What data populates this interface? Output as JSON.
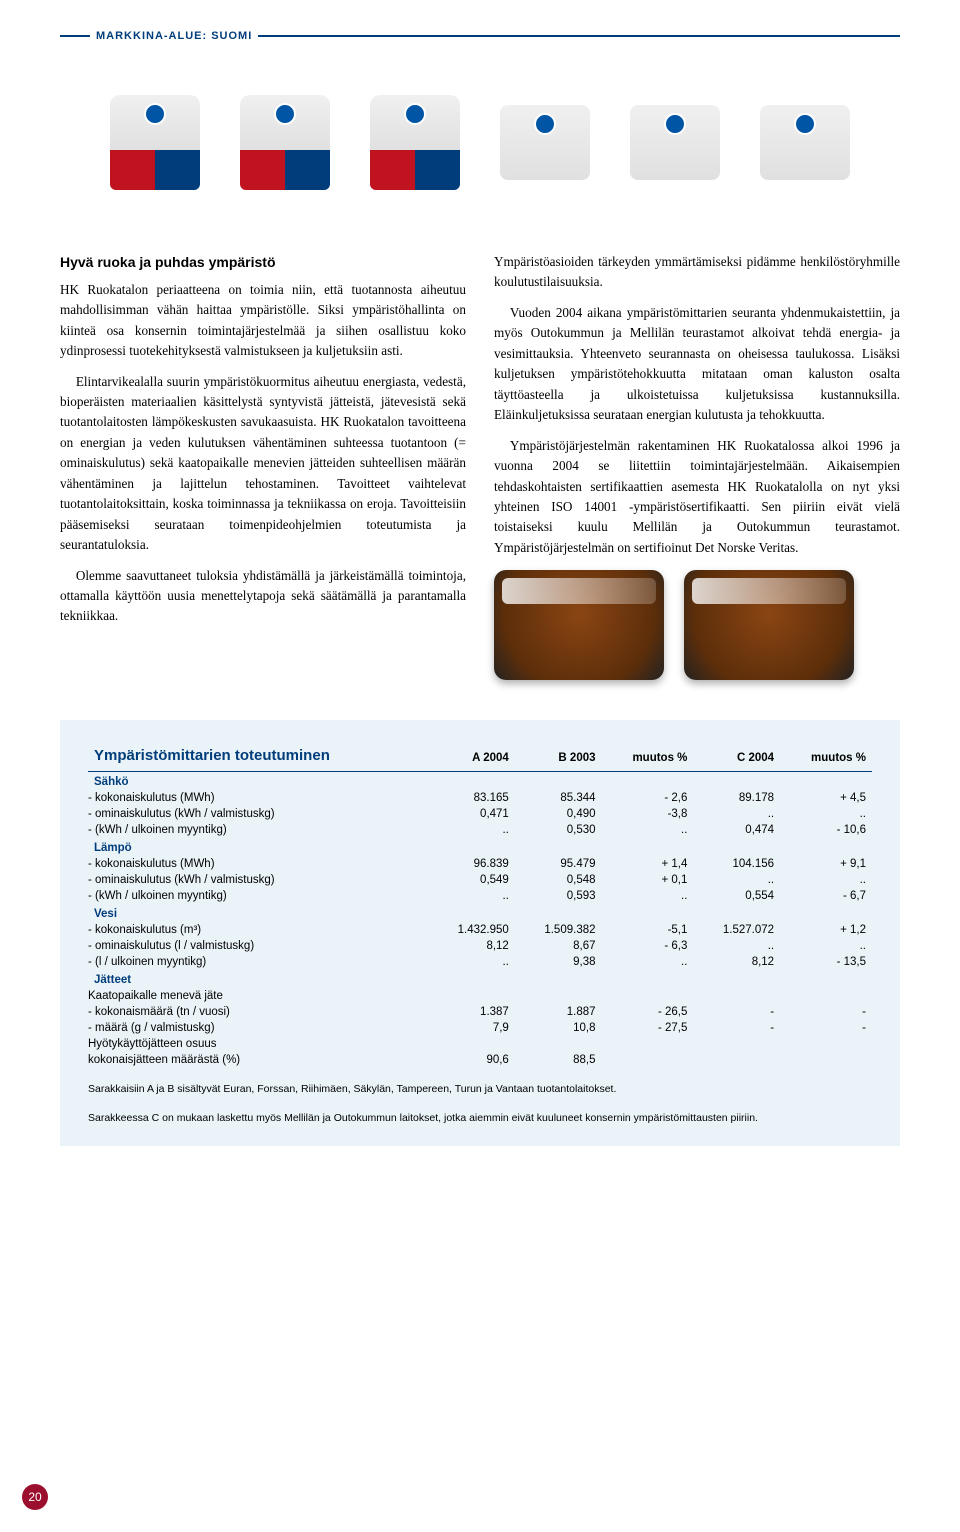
{
  "header": {
    "label": "MARKKINA-ALUE: SUOMI"
  },
  "article": {
    "heading": "Hyvä ruoka ja puhdas ympäristö",
    "left": [
      "HK Ruokatalon periaatteena on toimia niin, että tuotannosta aiheutuu mahdollisimman vähän haittaa ympäristölle. Siksi ympäristöhallinta on kiinteä osa konsernin toimintajärjestelmää ja siihen osallistuu koko ydinprosessi tuotekehityksestä valmistukseen ja kuljetuksiin asti.",
      "Elintarvikealalla suurin ympäristökuormitus aiheutuu energiasta, vedestä, bioperäisten materiaalien käsittelystä syntyvistä jätteistä, jätevesistä sekä tuotantolaitosten lämpökeskusten savukaasuista. HK Ruokatalon tavoitteena on energian ja veden kulutuksen vähentäminen suhteessa tuotantoon (= ominaiskulutus) sekä kaatopaikalle menevien jätteiden suhteellisen määrän vähentäminen ja lajittelun tehostaminen. Tavoitteet vaihtelevat tuotantolaitoksittain, koska toiminnassa ja tekniikassa on eroja. Tavoitteisiin pääsemiseksi seurataan toimenpideohjelmien toteutumista ja seurantatuloksia.",
      "Olemme saavuttaneet tuloksia yhdistämällä ja järkeistämällä toimintoja, ottamalla käyttöön uusia menettelytapoja sekä säätämällä ja parantamalla tekniikkaa."
    ],
    "right": [
      "Ympäristöasioiden tärkeyden ymmärtämiseksi pidämme henkilöstöryhmille koulutustilaisuuksia.",
      "Vuoden 2004 aikana ympäristömittarien seuranta yhdenmukaistettiin, ja myös Outokummun ja Mellilän teurastamot alkoivat tehdä energia- ja vesimittauksia. Yhteenveto seurannasta on oheisessa taulukossa. Lisäksi kuljetuksen ympäristötehokkuutta mitataan oman kaluston osalta täyttöasteella ja ulkoistetuissa kuljetuksissa kustannuksilla. Eläinkuljetuksissa seurataan energian kulutusta ja tehokkuutta.",
      "Ympäristöjärjestelmän rakentaminen HK Ruokatalossa alkoi 1996 ja vuonna 2004 se liitettiin toimintajärjestelmään. Aikaisempien tehdaskohtaisten sertifikaattien asemesta HK Ruokatalolla on nyt yksi yhteinen ISO 14001 -ympäristösertifikaatti. Sen piiriin eivät vielä toistaiseksi kuulu Mellilän ja Outokummun teurastamot. Ympäristöjärjestelmän on sertifioinut Det Norske Veritas."
    ]
  },
  "table": {
    "title": "Ympäristömittarien toteutuminen",
    "columns": [
      "A 2004",
      "B 2003",
      "muutos %",
      "C 2004",
      "muutos %"
    ],
    "sections": [
      {
        "name": "Sähkö",
        "rows": [
          {
            "label": "- kokonaiskulutus (MWh)",
            "v": [
              "83.165",
              "85.344",
              "- 2,6",
              "89.178",
              "+ 4,5"
            ]
          },
          {
            "label": "- ominaiskulutus (kWh / valmistuskg)",
            "v": [
              "0,471",
              "0,490",
              "-3,8",
              "..",
              ".."
            ]
          },
          {
            "label": "- (kWh / ulkoinen myyntikg)",
            "v": [
              "..",
              "0,530",
              "..",
              "0,474",
              "- 10,6"
            ]
          }
        ]
      },
      {
        "name": "Lämpö",
        "rows": [
          {
            "label": "- kokonaiskulutus (MWh)",
            "v": [
              "96.839",
              "95.479",
              "+ 1,4",
              "104.156",
              "+ 9,1"
            ]
          },
          {
            "label": "- ominaiskulutus (kWh / valmistuskg)",
            "v": [
              "0,549",
              "0,548",
              "+ 0,1",
              "..",
              ".."
            ]
          },
          {
            "label": "- (kWh / ulkoinen myyntikg)",
            "v": [
              "..",
              "0,593",
              "..",
              "0,554",
              "- 6,7"
            ]
          }
        ]
      },
      {
        "name": "Vesi",
        "rows": [
          {
            "label": "- kokonaiskulutus (m³)",
            "v": [
              "1.432.950",
              "1.509.382",
              "-5,1",
              "1.527.072",
              "+ 1,2"
            ]
          },
          {
            "label": "- ominaiskulutus (l / valmistuskg)",
            "v": [
              "8,12",
              "8,67",
              "- 6,3",
              "..",
              ".."
            ]
          },
          {
            "label": "- (l / ulkoinen myyntikg)",
            "v": [
              "..",
              "9,38",
              "..",
              "8,12",
              "- 13,5"
            ]
          }
        ]
      },
      {
        "name": "Jätteet",
        "rows": [
          {
            "label": "Kaatopaikalle menevä jäte",
            "v": [
              "",
              "",
              "",
              "",
              ""
            ]
          },
          {
            "label": "- kokonaismäärä (tn / vuosi)",
            "v": [
              "1.387",
              "1.887",
              "- 26,5",
              "-",
              "-"
            ]
          },
          {
            "label": "- määrä (g / valmistuskg)",
            "v": [
              "7,9",
              "10,8",
              "- 27,5",
              "-",
              "-"
            ]
          },
          {
            "label": "Hyötykäyttöjätteen osuus",
            "v": [
              "",
              "",
              "",
              "",
              ""
            ]
          },
          {
            "label": "kokonaisjätteen määrästä (%)",
            "v": [
              "90,6",
              "88,5",
              "",
              "",
              ""
            ]
          }
        ]
      }
    ],
    "footnote1": "Sarakkaisiin A ja B sisältyvät Euran, Forssan, Riihimäen, Säkylän, Tampereen, Turun ja Vantaan tuotantolaitokset.",
    "footnote2": "Sarakkeessa C on mukaan laskettu myös Mellilän ja Outokummun laitokset, jotka aiemmin eivät kuuluneet konsernin ympäristömittausten piiriin."
  },
  "pageNumber": "20",
  "style": {
    "brandBlue": "#003d7a",
    "brandRed": "#c1121f",
    "tableBg": "#eaf3f8",
    "badge": "#9b0e2e",
    "bodyFontSize": 13.2,
    "tableFontSize": 11.5
  }
}
